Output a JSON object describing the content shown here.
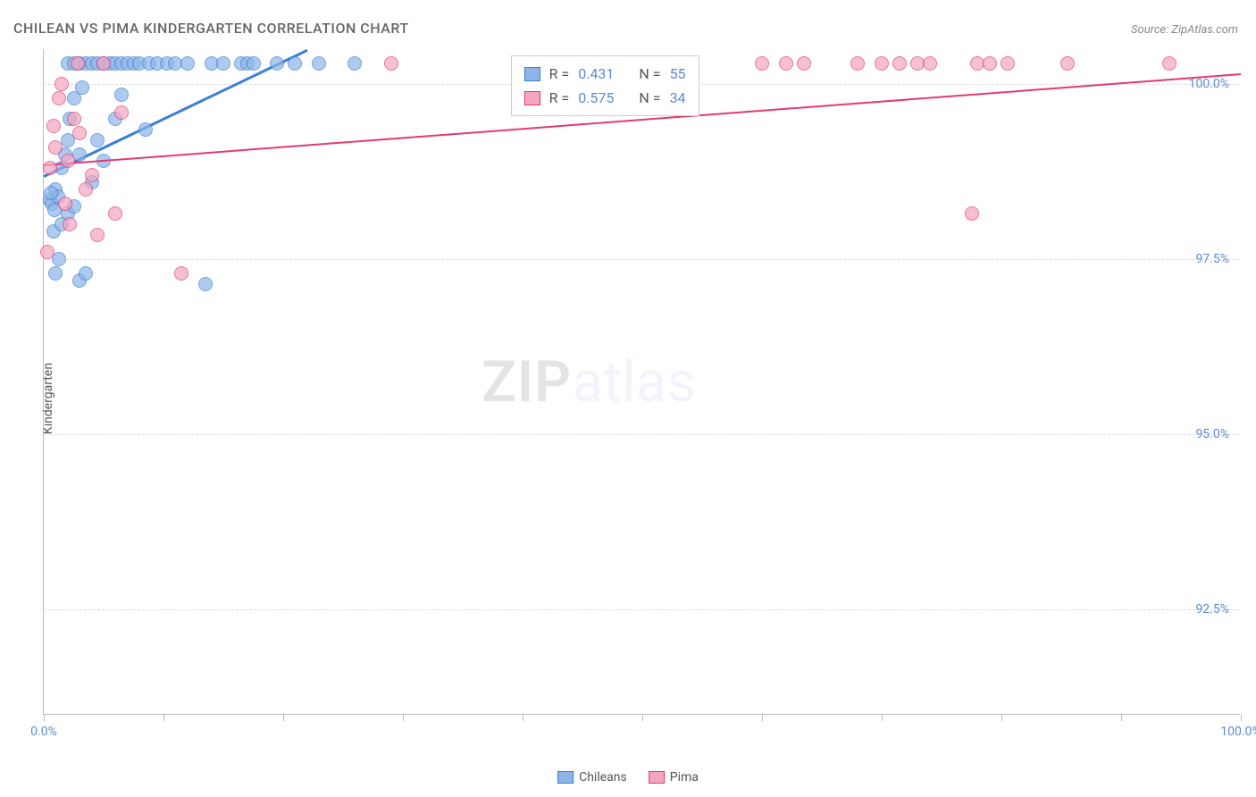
{
  "title": "CHILEAN VS PIMA KINDERGARTEN CORRELATION CHART",
  "source": "Source: ZipAtlas.com",
  "y_axis_label": "Kindergarten",
  "watermark": {
    "part1": "ZIP",
    "part2": "atlas"
  },
  "chart": {
    "type": "scatter",
    "xlim": [
      0,
      100
    ],
    "ylim": [
      91,
      100.5
    ],
    "background_color": "#ffffff",
    "grid_color": "#dddddd",
    "y_ticks": [
      {
        "value": 92.5,
        "label": "92.5%"
      },
      {
        "value": 95.0,
        "label": "95.0%"
      },
      {
        "value": 97.5,
        "label": "97.5%"
      },
      {
        "value": 100.0,
        "label": "100.0%"
      }
    ],
    "x_ticks": [
      0,
      10,
      20,
      30,
      40,
      50,
      60,
      70,
      80,
      90,
      100
    ],
    "x_tick_labels": [
      {
        "value": 0,
        "label": "0.0%"
      },
      {
        "value": 100,
        "label": "100.0%"
      }
    ],
    "marker_radius": 8,
    "marker_stroke_width": 1.5,
    "marker_fill_opacity": 0.25,
    "series": [
      {
        "name": "Chileans",
        "color_stroke": "#3b7dd8",
        "color_fill": "#8db5e8",
        "trendline": {
          "x1": 0,
          "y1": 98.7,
          "x2": 22,
          "y2": 100.5,
          "width": 2.5
        },
        "stats": {
          "r": "0.431",
          "n": "55"
        },
        "points": [
          [
            0.5,
            98.35
          ],
          [
            0.7,
            98.3
          ],
          [
            0.9,
            98.2
          ],
          [
            1.0,
            98.5
          ],
          [
            1.2,
            98.4
          ],
          [
            1.5,
            98.8
          ],
          [
            1.8,
            99.0
          ],
          [
            2.0,
            99.2
          ],
          [
            2.2,
            99.5
          ],
          [
            2.5,
            99.8
          ],
          [
            0.8,
            97.9
          ],
          [
            1.0,
            97.3
          ],
          [
            1.3,
            97.5
          ],
          [
            3.0,
            97.2
          ],
          [
            3.5,
            97.3
          ],
          [
            2.0,
            100.3
          ],
          [
            2.5,
            100.3
          ],
          [
            3.0,
            100.3
          ],
          [
            3.5,
            100.3
          ],
          [
            4.0,
            100.3
          ],
          [
            4.5,
            100.3
          ],
          [
            5.0,
            100.3
          ],
          [
            5.5,
            100.3
          ],
          [
            6.0,
            100.3
          ],
          [
            6.5,
            100.3
          ],
          [
            7.0,
            100.3
          ],
          [
            7.5,
            100.3
          ],
          [
            8.0,
            100.3
          ],
          [
            8.8,
            100.3
          ],
          [
            9.5,
            100.3
          ],
          [
            10.3,
            100.3
          ],
          [
            11.0,
            100.3
          ],
          [
            12.0,
            100.3
          ],
          [
            14.0,
            100.3
          ],
          [
            15.0,
            100.3
          ],
          [
            16.5,
            100.3
          ],
          [
            17.0,
            100.3
          ],
          [
            17.5,
            100.3
          ],
          [
            19.5,
            100.3
          ],
          [
            21.0,
            100.3
          ],
          [
            23.0,
            100.3
          ],
          [
            26.0,
            100.3
          ],
          [
            3.0,
            99.0
          ],
          [
            4.5,
            99.2
          ],
          [
            5.0,
            98.9
          ],
          [
            6.0,
            99.5
          ],
          [
            1.5,
            98.0
          ],
          [
            2.0,
            98.15
          ],
          [
            2.5,
            98.25
          ],
          [
            0.6,
            98.45
          ],
          [
            13.5,
            97.15
          ],
          [
            6.5,
            99.85
          ],
          [
            8.5,
            99.35
          ],
          [
            4.0,
            98.6
          ],
          [
            3.2,
            99.95
          ]
        ]
      },
      {
        "name": "Pima",
        "color_stroke": "#e23a72",
        "color_fill": "#f4a6c0",
        "trendline": {
          "x1": 0,
          "y1": 98.85,
          "x2": 100,
          "y2": 100.15,
          "width": 2
        },
        "stats": {
          "r": "0.575",
          "n": "34"
        },
        "points": [
          [
            0.3,
            97.6
          ],
          [
            0.5,
            98.8
          ],
          [
            1.0,
            99.1
          ],
          [
            1.3,
            99.8
          ],
          [
            2.0,
            98.9
          ],
          [
            2.5,
            99.5
          ],
          [
            3.0,
            99.3
          ],
          [
            4.0,
            98.7
          ],
          [
            5.0,
            100.3
          ],
          [
            6.5,
            99.6
          ],
          [
            1.8,
            98.3
          ],
          [
            2.2,
            98.0
          ],
          [
            3.5,
            98.5
          ],
          [
            4.5,
            97.85
          ],
          [
            11.5,
            97.3
          ],
          [
            6.0,
            98.15
          ],
          [
            29.0,
            100.3
          ],
          [
            0.8,
            99.4
          ],
          [
            60.0,
            100.3
          ],
          [
            62.0,
            100.3
          ],
          [
            63.5,
            100.3
          ],
          [
            68.0,
            100.3
          ],
          [
            70.0,
            100.3
          ],
          [
            71.5,
            100.3
          ],
          [
            73.0,
            100.3
          ],
          [
            74.0,
            100.3
          ],
          [
            78.0,
            100.3
          ],
          [
            79.0,
            100.3
          ],
          [
            80.5,
            100.3
          ],
          [
            85.5,
            100.3
          ],
          [
            94.0,
            100.3
          ],
          [
            77.5,
            98.15
          ],
          [
            2.8,
            100.3
          ],
          [
            1.5,
            100.0
          ]
        ]
      }
    ]
  },
  "legend": {
    "series1_label": "Chileans",
    "series2_label": "Pima"
  },
  "stats_box": {
    "r_label": "R =",
    "n_label": "N ="
  }
}
